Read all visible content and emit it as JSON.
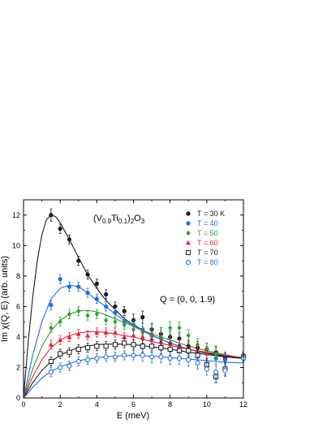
{
  "chart_data": {
    "type": "scatter",
    "formula": {
      "main": "(V",
      "sub1": "0.9",
      "mid": "Ti",
      "sub2": "0.1",
      "close": ")",
      "sub3": "2",
      "tail": "O",
      "sub4": "3"
    },
    "q_annotation": "Q = (0, 0, 1.9)",
    "xlabel": "E (meV)",
    "ylabel": "Im χ(Q, E)  (arb. units)",
    "xlim": [
      0,
      12
    ],
    "ylim": [
      0,
      13
    ],
    "x_ticks": [
      0,
      2,
      4,
      6,
      8,
      10,
      12
    ],
    "y_ticks": [
      0,
      2,
      4,
      6,
      8,
      10,
      12
    ],
    "grid": false,
    "legend_position": "top-right",
    "series": [
      {
        "name": "T = 30 K",
        "color": "#1a1a1a",
        "marker": "filled-circle",
        "points": [
          [
            1.5,
            12.0,
            0.4
          ],
          [
            2.0,
            11.1,
            0.3
          ],
          [
            2.5,
            10.4,
            0.3
          ],
          [
            3.0,
            9.0,
            0.3
          ],
          [
            3.5,
            8.1,
            0.3
          ],
          [
            4.0,
            7.5,
            0.3
          ],
          [
            4.5,
            6.8,
            0.3
          ],
          [
            5.0,
            6.0,
            0.3
          ],
          [
            5.5,
            5.7,
            0.3
          ],
          [
            6.0,
            5.1,
            0.4
          ],
          [
            6.5,
            5.3,
            0.4
          ],
          [
            7.0,
            4.5,
            0.4
          ],
          [
            7.5,
            4.2,
            0.4
          ],
          [
            8.0,
            4.0,
            0.4
          ],
          [
            8.5,
            3.9,
            0.4
          ],
          [
            9.0,
            3.4,
            0.4
          ],
          [
            9.5,
            3.3,
            0.4
          ],
          [
            10.0,
            3.2,
            0.4
          ],
          [
            10.5,
            3.0,
            0.4
          ],
          [
            11.0,
            2.6,
            0.4
          ],
          [
            12.0,
            2.7,
            0.2
          ]
        ],
        "curve": [
          [
            0,
            0
          ],
          [
            0.25,
            3.6
          ],
          [
            0.5,
            6.6
          ],
          [
            0.75,
            9.0
          ],
          [
            1.0,
            10.7
          ],
          [
            1.25,
            11.7
          ],
          [
            1.5,
            12.0
          ],
          [
            1.75,
            11.9
          ],
          [
            2.0,
            11.5
          ],
          [
            2.5,
            10.4
          ],
          [
            3.0,
            9.2
          ],
          [
            3.5,
            8.1
          ],
          [
            4.0,
            7.2
          ],
          [
            4.5,
            6.4
          ],
          [
            5.0,
            5.8
          ],
          [
            5.5,
            5.2
          ],
          [
            6.0,
            4.8
          ],
          [
            7.0,
            4.1
          ],
          [
            8.0,
            3.6
          ],
          [
            9.0,
            3.2
          ],
          [
            10.0,
            2.95
          ],
          [
            11.0,
            2.75
          ],
          [
            12.0,
            2.6
          ]
        ]
      },
      {
        "name": "T = 40",
        "color": "#1f6fe0",
        "marker": "filled-circle",
        "points": [
          [
            1.5,
            6.1,
            0.3
          ],
          [
            2.0,
            7.8,
            0.3
          ],
          [
            2.5,
            7.3,
            0.3
          ],
          [
            3.0,
            7.3,
            0.3
          ],
          [
            3.5,
            6.9,
            0.3
          ],
          [
            4.0,
            6.5,
            0.3
          ],
          [
            4.5,
            6.0,
            0.3
          ],
          [
            5.0,
            5.6,
            0.3
          ],
          [
            5.5,
            5.0,
            0.3
          ],
          [
            6.0,
            4.8,
            0.3
          ],
          [
            6.5,
            4.5,
            0.4
          ],
          [
            7.0,
            4.1,
            0.4
          ],
          [
            7.5,
            3.9,
            0.4
          ],
          [
            8.0,
            3.6,
            0.4
          ],
          [
            8.5,
            3.4,
            0.4
          ],
          [
            9.0,
            3.2,
            0.4
          ],
          [
            9.5,
            3.0,
            0.4
          ],
          [
            10.0,
            2.9,
            0.4
          ],
          [
            10.5,
            2.6,
            0.4
          ],
          [
            11.0,
            2.5,
            0.4
          ],
          [
            12.0,
            2.6,
            0.2
          ]
        ],
        "curve": [
          [
            0,
            0
          ],
          [
            0.5,
            2.8
          ],
          [
            1.0,
            5.0
          ],
          [
            1.5,
            6.5
          ],
          [
            2.0,
            7.2
          ],
          [
            2.5,
            7.4
          ],
          [
            3.0,
            7.3
          ],
          [
            3.5,
            6.9
          ],
          [
            4.0,
            6.4
          ],
          [
            4.5,
            6.0
          ],
          [
            5.0,
            5.5
          ],
          [
            6.0,
            4.7
          ],
          [
            7.0,
            4.1
          ],
          [
            8.0,
            3.6
          ],
          [
            9.0,
            3.2
          ],
          [
            10.0,
            2.9
          ],
          [
            11.0,
            2.7
          ],
          [
            12.0,
            2.6
          ]
        ]
      },
      {
        "name": "T = 50",
        "color": "#2ca02c",
        "marker": "filled-diamond",
        "points": [
          [
            1.5,
            4.6,
            0.3
          ],
          [
            2.0,
            5.0,
            0.3
          ],
          [
            2.5,
            5.5,
            0.3
          ],
          [
            3.0,
            5.7,
            0.3
          ],
          [
            3.5,
            5.4,
            0.3
          ],
          [
            4.0,
            5.5,
            0.3
          ],
          [
            4.5,
            5.1,
            0.3
          ],
          [
            5.0,
            5.0,
            0.3
          ],
          [
            5.5,
            4.8,
            0.3
          ],
          [
            6.0,
            4.5,
            0.4
          ],
          [
            6.5,
            4.3,
            0.4
          ],
          [
            7.0,
            4.2,
            0.4
          ],
          [
            7.5,
            4.0,
            0.4
          ],
          [
            8.0,
            4.6,
            0.4
          ],
          [
            8.5,
            4.6,
            0.4
          ],
          [
            9.0,
            4.1,
            0.4
          ],
          [
            9.5,
            3.5,
            0.4
          ],
          [
            10.0,
            3.2,
            0.4
          ],
          [
            10.5,
            2.9,
            0.4
          ],
          [
            12.0,
            2.7,
            0.2
          ]
        ],
        "curve": [
          [
            0,
            0
          ],
          [
            0.5,
            1.9
          ],
          [
            1.0,
            3.4
          ],
          [
            1.5,
            4.4
          ],
          [
            2.0,
            5.1
          ],
          [
            2.5,
            5.5
          ],
          [
            3.0,
            5.7
          ],
          [
            3.5,
            5.75
          ],
          [
            4.0,
            5.65
          ],
          [
            4.5,
            5.45
          ],
          [
            5.0,
            5.2
          ],
          [
            6.0,
            4.7
          ],
          [
            7.0,
            4.2
          ],
          [
            8.0,
            3.8
          ],
          [
            9.0,
            3.4
          ],
          [
            10.0,
            3.1
          ],
          [
            11.0,
            2.85
          ],
          [
            12.0,
            2.6
          ]
        ]
      },
      {
        "name": "T = 60",
        "color": "#e8223a",
        "marker": "filled-triangle",
        "points": [
          [
            1.5,
            3.5,
            0.3
          ],
          [
            2.0,
            3.8,
            0.3
          ],
          [
            2.5,
            4.0,
            0.3
          ],
          [
            3.0,
            4.2,
            0.3
          ],
          [
            3.5,
            4.1,
            0.3
          ],
          [
            4.0,
            4.3,
            0.3
          ],
          [
            4.5,
            4.3,
            0.3
          ],
          [
            5.0,
            4.3,
            0.3
          ],
          [
            5.5,
            4.0,
            0.3
          ],
          [
            6.0,
            4.1,
            0.3
          ],
          [
            6.5,
            4.0,
            0.4
          ],
          [
            7.0,
            3.9,
            0.4
          ],
          [
            7.5,
            3.7,
            0.4
          ],
          [
            8.0,
            3.6,
            0.4
          ],
          [
            8.5,
            3.4,
            0.4
          ],
          [
            9.0,
            3.3,
            0.4
          ],
          [
            9.5,
            3.1,
            0.4
          ],
          [
            10.0,
            3.0,
            0.4
          ],
          [
            12.0,
            2.7,
            0.2
          ]
        ],
        "curve": [
          [
            0,
            0
          ],
          [
            0.5,
            1.4
          ],
          [
            1.0,
            2.5
          ],
          [
            1.5,
            3.3
          ],
          [
            2.0,
            3.8
          ],
          [
            2.5,
            4.1
          ],
          [
            3.0,
            4.25
          ],
          [
            3.5,
            4.35
          ],
          [
            4.0,
            4.35
          ],
          [
            4.5,
            4.3
          ],
          [
            5.0,
            4.2
          ],
          [
            6.0,
            4.0
          ],
          [
            7.0,
            3.7
          ],
          [
            8.0,
            3.45
          ],
          [
            9.0,
            3.2
          ],
          [
            10.0,
            3.0
          ],
          [
            11.0,
            2.8
          ],
          [
            12.0,
            2.65
          ]
        ]
      },
      {
        "name": "T = 70",
        "color": "#1a1a1a",
        "marker": "open-square",
        "points": [
          [
            1.5,
            2.4,
            0.3
          ],
          [
            2.0,
            2.9,
            0.3
          ],
          [
            2.5,
            3.0,
            0.3
          ],
          [
            3.0,
            3.2,
            0.3
          ],
          [
            3.5,
            3.3,
            0.3
          ],
          [
            4.0,
            3.4,
            0.3
          ],
          [
            4.5,
            3.4,
            0.3
          ],
          [
            5.0,
            3.5,
            0.3
          ],
          [
            5.5,
            3.6,
            0.3
          ],
          [
            6.0,
            3.5,
            0.3
          ],
          [
            6.5,
            3.4,
            0.4
          ],
          [
            7.0,
            3.4,
            0.4
          ],
          [
            7.5,
            3.3,
            0.4
          ],
          [
            8.0,
            3.2,
            0.4
          ],
          [
            8.5,
            3.1,
            0.4
          ],
          [
            9.0,
            3.1,
            0.4
          ],
          [
            9.5,
            2.8,
            0.4
          ],
          [
            10.0,
            2.2,
            0.4
          ],
          [
            10.5,
            1.4,
            0.4
          ],
          [
            11.0,
            1.9,
            0.4
          ],
          [
            12.0,
            2.7,
            0.2
          ]
        ],
        "curve": [
          [
            0,
            0
          ],
          [
            0.5,
            1.0
          ],
          [
            1.0,
            1.8
          ],
          [
            1.5,
            2.4
          ],
          [
            2.0,
            2.8
          ],
          [
            2.5,
            3.1
          ],
          [
            3.0,
            3.3
          ],
          [
            3.5,
            3.4
          ],
          [
            4.0,
            3.5
          ],
          [
            5.0,
            3.55
          ],
          [
            6.0,
            3.5
          ],
          [
            7.0,
            3.35
          ],
          [
            8.0,
            3.2
          ],
          [
            9.0,
            3.0
          ],
          [
            10.0,
            2.85
          ],
          [
            11.0,
            2.7
          ],
          [
            12.0,
            2.6
          ]
        ]
      },
      {
        "name": "T = 80",
        "color": "#1f6fe0",
        "marker": "open-circle",
        "points": [
          [
            1.5,
            1.7,
            0.3
          ],
          [
            2.0,
            2.0,
            0.3
          ],
          [
            2.5,
            2.1,
            0.3
          ],
          [
            3.0,
            2.4,
            0.3
          ],
          [
            3.5,
            2.5,
            0.3
          ],
          [
            4.0,
            2.6,
            0.3
          ],
          [
            4.5,
            2.7,
            0.3
          ],
          [
            5.0,
            2.7,
            0.3
          ],
          [
            5.5,
            2.8,
            0.3
          ],
          [
            6.0,
            2.8,
            0.3
          ],
          [
            6.5,
            2.8,
            0.4
          ],
          [
            7.0,
            2.7,
            0.4
          ],
          [
            7.5,
            2.7,
            0.4
          ],
          [
            8.0,
            2.6,
            0.4
          ],
          [
            8.5,
            2.6,
            0.4
          ],
          [
            9.0,
            2.5,
            0.4
          ],
          [
            9.5,
            2.3,
            0.4
          ],
          [
            10.0,
            1.9,
            0.4
          ],
          [
            10.5,
            1.7,
            0.4
          ],
          [
            11.0,
            1.8,
            0.4
          ],
          [
            12.0,
            2.6,
            0.2
          ]
        ],
        "curve": [
          [
            0,
            0
          ],
          [
            0.5,
            0.7
          ],
          [
            1.0,
            1.3
          ],
          [
            1.5,
            1.75
          ],
          [
            2.0,
            2.05
          ],
          [
            3.0,
            2.45
          ],
          [
            4.0,
            2.65
          ],
          [
            5.0,
            2.75
          ],
          [
            6.0,
            2.8
          ],
          [
            7.0,
            2.75
          ],
          [
            8.0,
            2.65
          ],
          [
            9.0,
            2.55
          ],
          [
            10.0,
            2.45
          ],
          [
            11.0,
            2.35
          ],
          [
            12.0,
            2.3
          ]
        ]
      }
    ]
  }
}
